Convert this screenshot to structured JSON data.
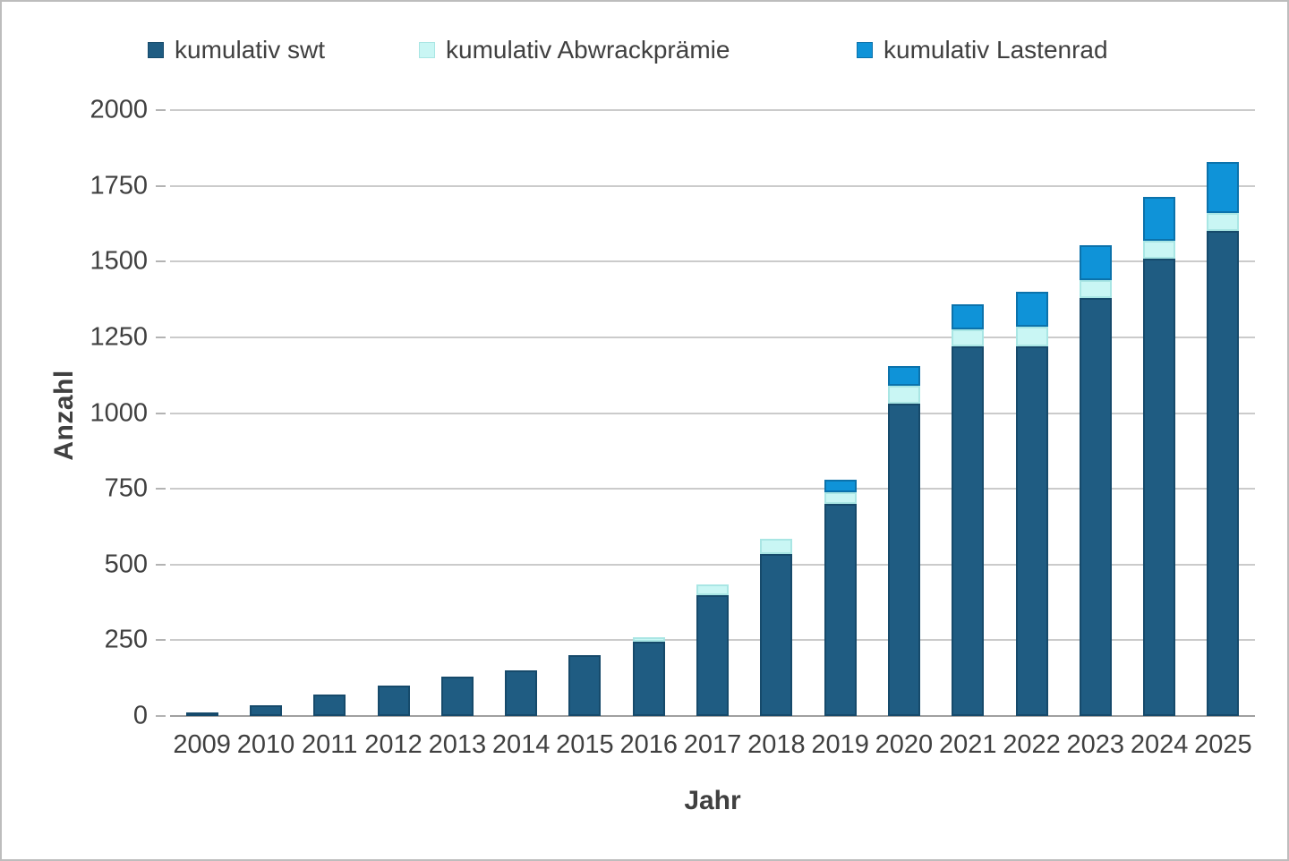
{
  "chart_data": {
    "type": "bar",
    "stacked": true,
    "title": "",
    "xlabel": "Jahr",
    "ylabel": "Anzahl",
    "ylim": [
      0,
      2000
    ],
    "yticks": [
      0,
      250,
      500,
      750,
      1000,
      1250,
      1500,
      1750,
      2000
    ],
    "grid": true,
    "legend_position": "top",
    "categories": [
      "2009",
      "2010",
      "2011",
      "2012",
      "2013",
      "2014",
      "2015",
      "2016",
      "2017",
      "2018",
      "2019",
      "2020",
      "2021",
      "2022",
      "2023",
      "2024",
      "2025"
    ],
    "series": [
      {
        "name": "kumulativ swt",
        "color": "#1f5c82",
        "border_color": "#164a6b",
        "values": [
          12,
          35,
          70,
          100,
          130,
          150,
          200,
          245,
          400,
          535,
          700,
          1030,
          1220,
          1220,
          1380,
          1510,
          1600
        ]
      },
      {
        "name": "kumulativ Abwrackprämie",
        "color": "#c9f6f4",
        "border_color": "#a9e6e4",
        "values": [
          0,
          0,
          0,
          0,
          0,
          0,
          0,
          15,
          35,
          50,
          40,
          60,
          55,
          65,
          60,
          60,
          60
        ]
      },
      {
        "name": "kumulativ Lastenrad",
        "color": "#0f93d8",
        "border_color": "#0b72ab",
        "values": [
          0,
          0,
          0,
          0,
          0,
          0,
          0,
          0,
          0,
          0,
          40,
          65,
          85,
          115,
          115,
          145,
          170
        ]
      }
    ]
  },
  "styles": {
    "grid_color": "#cbcbcb",
    "baseline_color": "#a0a0a0",
    "text_color": "#404040",
    "frame_color": "#bdbdbd",
    "background": "#ffffff"
  }
}
